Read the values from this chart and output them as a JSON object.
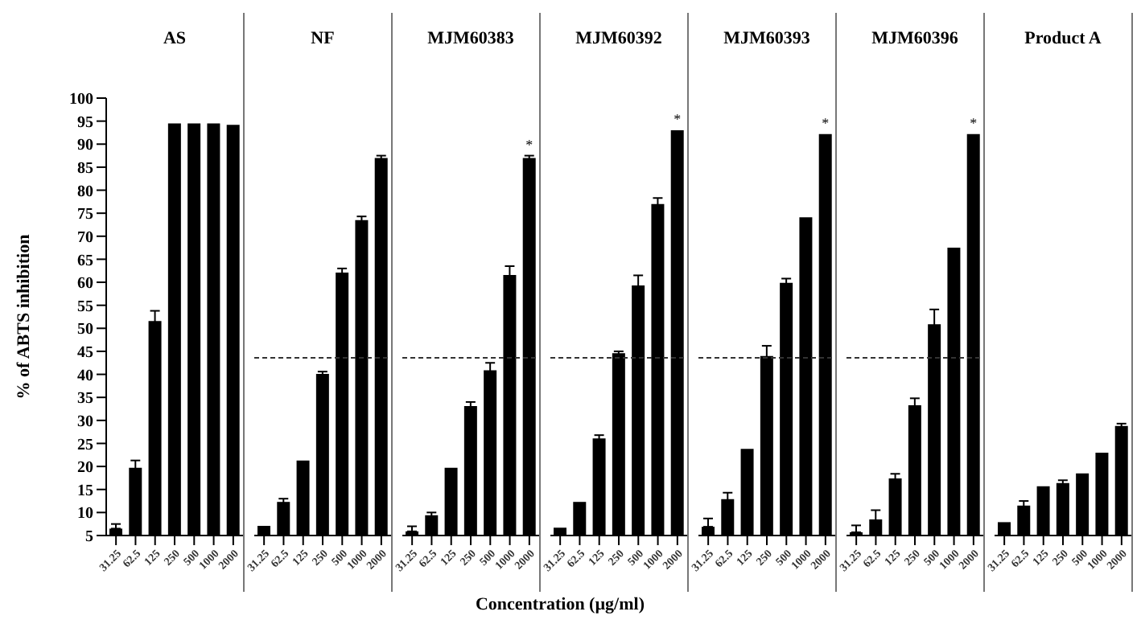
{
  "chart_data": [
    {
      "type": "bar",
      "title": "AS",
      "ylabel": "% of ABTS inhibition",
      "categories": [
        "31.25",
        "62.5",
        "125",
        "250",
        "500",
        "1000",
        "2000"
      ],
      "values": [
        6.5,
        19.7,
        51.6,
        94.5,
        94.5,
        94.5,
        94.2
      ],
      "errors": [
        [
          6.5,
          7.5
        ],
        1.6,
        2.2,
        null,
        null,
        null,
        null
      ],
      "color": "#000000",
      "ylim": [
        5,
        100
      ],
      "yticks": [
        5,
        10,
        15,
        20,
        25,
        30,
        35,
        40,
        45,
        50,
        55,
        60,
        65,
        70,
        75,
        80,
        85,
        90,
        95,
        100
      ]
    },
    {
      "type": "bar",
      "title": "NF",
      "categories": [
        "31.25",
        "62.5",
        "125",
        "250",
        "500",
        "1000",
        "2000"
      ],
      "values": [
        7.1,
        12.3,
        21.3,
        40.1,
        62.1,
        73.5,
        87
      ],
      "errors": [
        null,
        0.7,
        null,
        0.5,
        0.9,
        0.8,
        0.5
      ],
      "color": "#000000",
      "ylim": [
        5,
        100
      ],
      "yticks": [
        5,
        10,
        15,
        20,
        25,
        30,
        35,
        40,
        45,
        50,
        55,
        60,
        65,
        70,
        75,
        80,
        85,
        90,
        95,
        100
      ],
      "tick_labels": "x",
      "ref_lines": [
        {
          "axis": "y",
          "value": 43.6,
          "line_style": "dashed"
        }
      ]
    },
    {
      "type": "bar",
      "title": "MJM60383",
      "categories": [
        "31.25",
        "62.5",
        "125",
        "250",
        "500",
        "1000",
        "2000"
      ],
      "values": [
        5.9,
        9.4,
        19.7,
        33.1,
        40.9,
        61.6,
        87
      ],
      "errors": [
        [
          5.9,
          7
        ],
        0.6,
        null,
        0.9,
        1.6,
        1.9,
        0.5
      ],
      "color": "#000000",
      "ylim": [
        5,
        100
      ],
      "yticks": [
        5,
        10,
        15,
        20,
        25,
        30,
        35,
        40,
        45,
        50,
        55,
        60,
        65,
        70,
        75,
        80,
        85,
        90,
        95,
        100
      ],
      "tick_labels": "x",
      "ref_lines": [
        {
          "axis": "y",
          "value": 43.6,
          "line_style": "dashed"
        }
      ],
      "annotations": [
        "*"
      ]
    },
    {
      "type": "bar",
      "title": "MJM60392",
      "xlabel": "Concentration (µg/ml)",
      "categories": [
        "31.25",
        "62.5",
        "125",
        "250",
        "500",
        "1000",
        "2000"
      ],
      "values": [
        6.7,
        12.3,
        26.1,
        44.6,
        59.3,
        77,
        93
      ],
      "errors": [
        null,
        null,
        0.7,
        0.4,
        2.2,
        1.3,
        null
      ],
      "color": "#000000",
      "ylim": [
        5,
        100
      ],
      "yticks": [
        5,
        10,
        15,
        20,
        25,
        30,
        35,
        40,
        45,
        50,
        55,
        60,
        65,
        70,
        75,
        80,
        85,
        90,
        95,
        100
      ],
      "tick_labels": "x",
      "ref_lines": [
        {
          "axis": "y",
          "value": 43.6,
          "line_style": "dashed"
        }
      ],
      "annotations": [
        "*"
      ]
    },
    {
      "type": "bar",
      "title": "MJM60393",
      "categories": [
        "31.25",
        "62.5",
        "125",
        "250",
        "500",
        "1000",
        "2000"
      ],
      "values": [
        6.9,
        12.9,
        23.8,
        44,
        59.9,
        74.1,
        92.2
      ],
      "errors": [
        [
          6.9,
          8.7
        ],
        1.4,
        null,
        2.2,
        0.9,
        null,
        null
      ],
      "color": "#000000",
      "ylim": [
        5,
        100
      ],
      "yticks": [
        5,
        10,
        15,
        20,
        25,
        30,
        35,
        40,
        45,
        50,
        55,
        60,
        65,
        70,
        75,
        80,
        85,
        90,
        95,
        100
      ],
      "tick_labels": "x",
      "ref_lines": [
        {
          "axis": "y",
          "value": 43.6,
          "line_style": "dashed"
        }
      ],
      "annotations": [
        "*"
      ]
    },
    {
      "type": "bar",
      "title": "MJM60396",
      "categories": [
        "31.25",
        "62.5",
        "125",
        "250",
        "500",
        "1000",
        "2000"
      ],
      "values": [
        5.7,
        8.5,
        17.4,
        33.3,
        50.9,
        67.5,
        92.2
      ],
      "errors": [
        [
          5.7,
          7.2
        ],
        2,
        1,
        1.5,
        3.2,
        null,
        null
      ],
      "color": "#000000",
      "ylim": [
        5,
        100
      ],
      "yticks": [
        5,
        10,
        15,
        20,
        25,
        30,
        35,
        40,
        45,
        50,
        55,
        60,
        65,
        70,
        75,
        80,
        85,
        90,
        95,
        100
      ],
      "tick_labels": "x",
      "ref_lines": [
        {
          "axis": "y",
          "value": 43.6,
          "line_style": "dashed"
        }
      ],
      "annotations": [
        "*"
      ]
    },
    {
      "type": "bar",
      "title": "Product A",
      "categories": [
        "31.25",
        "62.5",
        "125",
        "250",
        "500",
        "1000",
        "2000"
      ],
      "values": [
        7.9,
        11.5,
        15.7,
        16.4,
        18.5,
        23,
        28.8
      ],
      "errors": [
        null,
        1,
        null,
        0.6,
        null,
        null,
        0.5
      ],
      "color": "#000000",
      "ylim": [
        5,
        100
      ],
      "yticks": [
        5,
        10,
        15,
        20,
        25,
        30,
        35,
        40,
        45,
        50,
        55,
        60,
        65,
        70,
        75,
        80,
        85,
        90,
        95,
        100
      ],
      "tick_labels": "x"
    }
  ]
}
